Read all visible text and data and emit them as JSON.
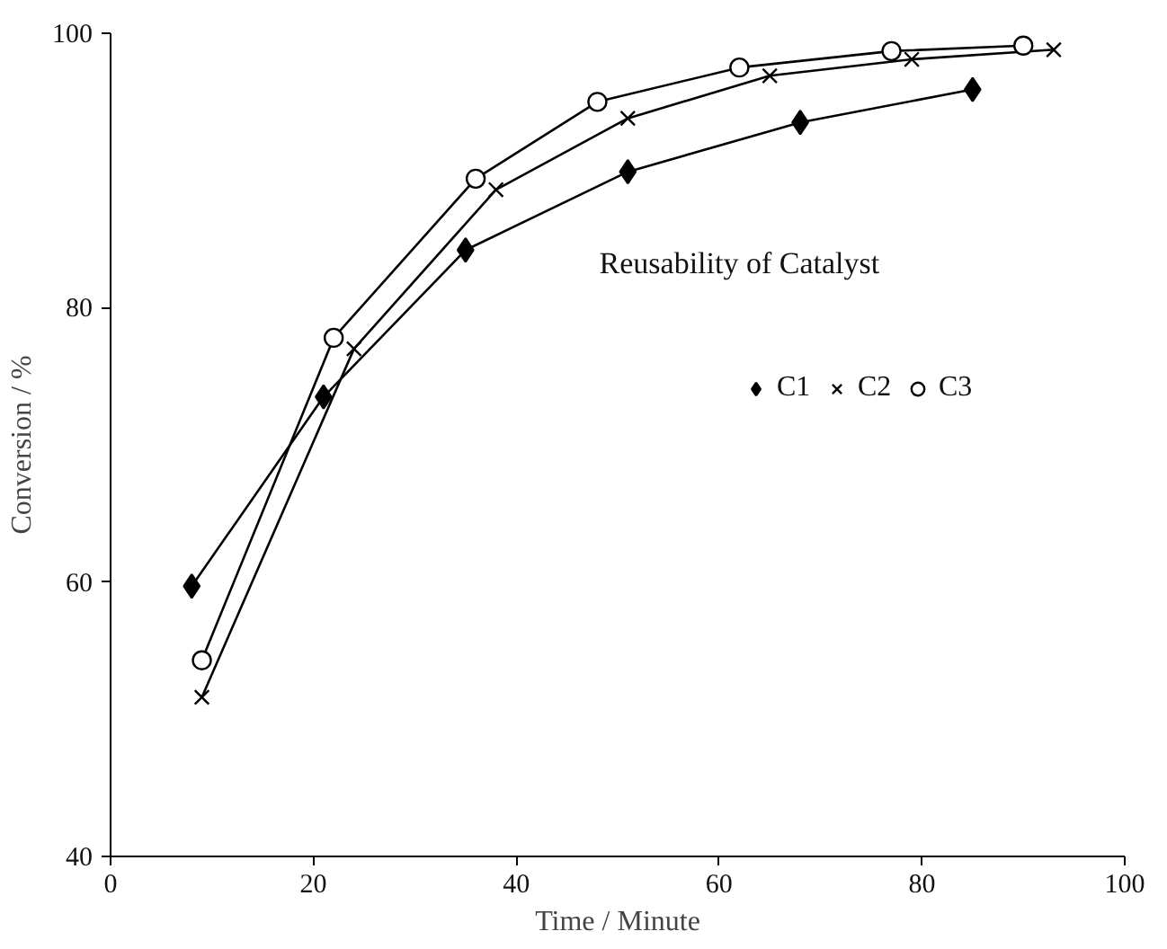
{
  "chart_data": {
    "type": "line",
    "title": "Reusability of Catalyst",
    "xlabel": "Time / Minute",
    "ylabel": "Conversion / %",
    "xlim": [
      0,
      100
    ],
    "ylim": [
      40,
      100
    ],
    "xticks": [
      0,
      20,
      40,
      60,
      80,
      100
    ],
    "yticks": [
      40,
      60,
      80,
      100
    ],
    "grid": false,
    "legend": "right",
    "line_style": "solid",
    "series": [
      {
        "name": "C1",
        "color": "#000000",
        "marker": "diamond",
        "x": [
          8,
          21,
          35,
          51,
          68,
          85
        ],
        "values": [
          59.7,
          73.5,
          84.2,
          89.9,
          93.5,
          95.9
        ]
      },
      {
        "name": "C2",
        "color": "#000000",
        "marker": "cross",
        "x": [
          9,
          24,
          38,
          51,
          65,
          79,
          93
        ],
        "values": [
          51.6,
          77.0,
          88.6,
          93.8,
          96.9,
          98.1,
          98.8
        ]
      },
      {
        "name": "C3",
        "color": "#000000",
        "marker": "circle",
        "x": [
          9,
          22,
          36,
          48,
          62,
          77,
          90
        ],
        "values": [
          54.3,
          77.8,
          89.4,
          95.0,
          97.5,
          98.7,
          99.1
        ]
      }
    ]
  }
}
